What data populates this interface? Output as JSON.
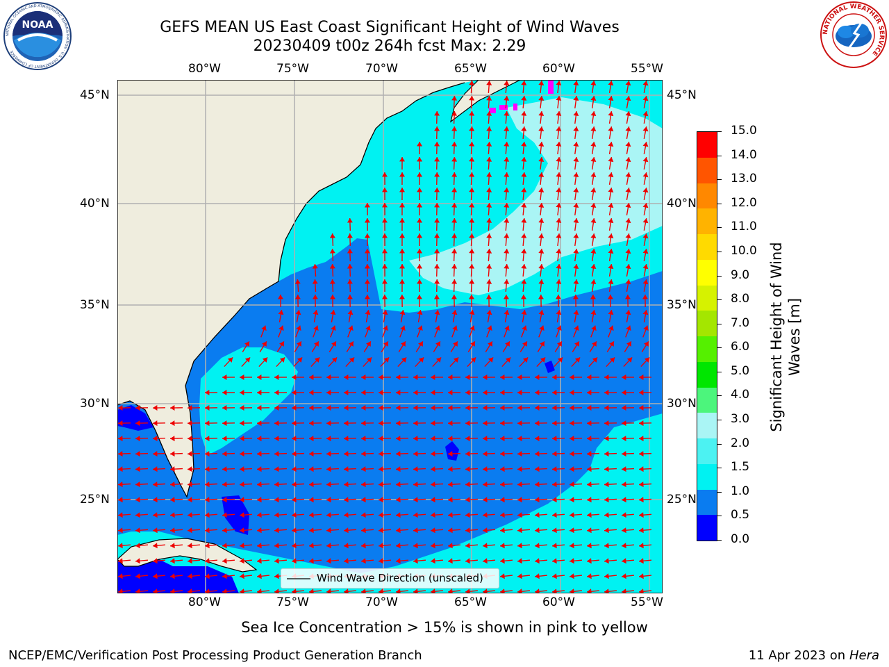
{
  "header": {
    "title_line1": "GEFS MEAN US East Coast Significant Height of Wind Waves",
    "title_line2": "20230409 t00z 264h fcst   Max: 2.29"
  },
  "map": {
    "lon_labels_top": [
      "80°W",
      "75°W",
      "70°W",
      "65°W",
      "60°W",
      "55°W"
    ],
    "lon_labels_bottom": [
      "80°W",
      "75°W",
      "70°W",
      "65°W",
      "60°W",
      "55°W"
    ],
    "lat_labels_left": [
      "45°N",
      "40°N",
      "35°N",
      "30°N",
      "25°N"
    ],
    "lat_labels_right": [
      "45°N",
      "40°N",
      "35°N",
      "30°N",
      "25°N"
    ],
    "colors": {
      "land": "#efedde",
      "ocean_low": "#0a7cf0",
      "ocean_mid": "#00f2f2",
      "ocean_high": "#aaf5f5",
      "ocean_min": "#0000ff",
      "arrows": "#ee0000",
      "grid": "#b0b0b0",
      "ice": "#ff00ff"
    },
    "legend_label": "Wind Wave Direction (unscaled)",
    "note": "Sea Ice Concentration > 15% is shown in pink to yellow"
  },
  "colorbar": {
    "title_line1": "Significant Height of Wind",
    "title_line2": "Waves [m]",
    "ticks": [
      "15.0",
      "14.0",
      "13.0",
      "12.0",
      "11.0",
      "10.0",
      "9.0",
      "8.0",
      "7.0",
      "6.0",
      "5.0",
      "4.0",
      "3.0",
      "2.0",
      "1.5",
      "1.0",
      "0.5",
      "0.0"
    ],
    "colors_bottom_to_top": [
      "#0000ff",
      "#0a7cf0",
      "#00f2f2",
      "#4cf2f2",
      "#aaf5f5",
      "#4cf57c",
      "#00e600",
      "#55f000",
      "#a4e600",
      "#d6f200",
      "#ffff00",
      "#ffda00",
      "#ffb300",
      "#ff8800",
      "#ff5500",
      "#ff0000"
    ]
  },
  "footer": {
    "left": "NCEP/EMC/Verification Post Processing Product Generation Branch",
    "right_prefix": "11 Apr 2023 on ",
    "right_host": "Hera"
  },
  "logos": {
    "noaa_text": "NOAA",
    "noaa_ring": "NATIONAL OCEANIC AND ATMOSPHERIC ADMINISTRATION · U.S. DEPARTMENT OF COMMERCE",
    "nws_ring": "NATIONAL WEATHER SERVICE"
  }
}
